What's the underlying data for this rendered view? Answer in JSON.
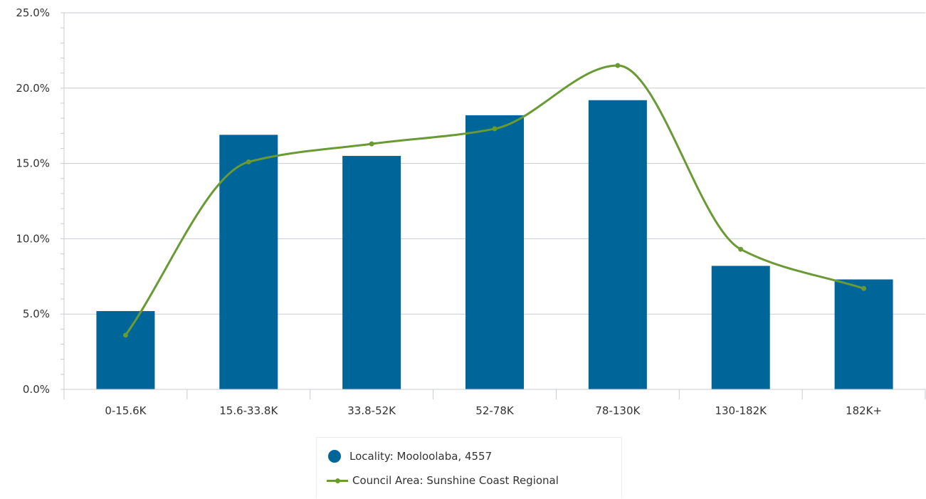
{
  "colors": {
    "bar": "#006699",
    "line": "#6a9a34",
    "grid": "#c8cbd2",
    "axis": "#c8cbd2",
    "text": "#333333"
  },
  "chart_data": {
    "type": "bar",
    "categories": [
      "0-15.6K",
      "15.6-33.8K",
      "33.8-52K",
      "52-78K",
      "78-130K",
      "130-182K",
      "182K+"
    ],
    "series": [
      {
        "name": "Locality: Mooloolaba, 4557",
        "type": "bar",
        "values": [
          5.2,
          16.9,
          15.5,
          18.2,
          19.2,
          8.2,
          7.3
        ]
      },
      {
        "name": "Council Area: Sunshine Coast Regional",
        "type": "line",
        "smooth": true,
        "values": [
          3.6,
          15.1,
          16.3,
          17.3,
          21.5,
          9.3,
          6.7
        ]
      }
    ],
    "ylim": [
      0,
      25
    ],
    "yticks": [
      0,
      5,
      10,
      15,
      20,
      25
    ],
    "ytick_labels": [
      "0.0%",
      "5.0%",
      "10.0%",
      "15.0%",
      "20.0%",
      "25.0%"
    ],
    "title": "",
    "xlabel": "",
    "ylabel": "",
    "grid": true,
    "legend": "bottom-center"
  }
}
